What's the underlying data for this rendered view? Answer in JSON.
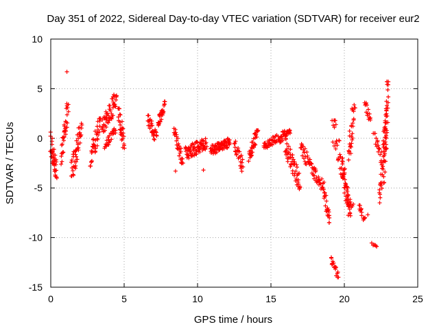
{
  "chart_data": {
    "type": "scatter",
    "title": "Day 351 of 2022, Sidereal Day-to-day VTEC variation (SDTVAR) for receiver eur2",
    "xlabel": "GPS time / hours",
    "ylabel": "SDTVAR / TECUs",
    "xlim": [
      0,
      25
    ],
    "ylim": [
      -15,
      10
    ],
    "x_ticks": [
      0,
      5,
      10,
      15,
      20,
      25
    ],
    "y_ticks": [
      -15,
      -10,
      -5,
      0,
      5,
      10
    ],
    "x_tick_labels": [
      "0",
      "5",
      "10",
      "15",
      "20",
      "25"
    ],
    "y_tick_labels": [
      "-15",
      "-10",
      "-5",
      "0",
      "5",
      "10"
    ],
    "grid": true,
    "marker": "+",
    "color": "#ff0000",
    "segments": [
      {
        "x0": 0.0,
        "x1": 0.4,
        "y_min": -4.0,
        "y_max": 1.5,
        "y0": -0.5,
        "y1": -3.5,
        "n": 40
      },
      {
        "x0": 0.7,
        "x1": 1.2,
        "y_min": -2.6,
        "y_max": 3.8,
        "y0": -2.4,
        "y1": 3.5,
        "n": 35
      },
      {
        "x0": 1.4,
        "x1": 2.1,
        "y_min": -3.8,
        "y_max": 1.5,
        "y0": -3.5,
        "y1": 1.0,
        "n": 45
      },
      {
        "x0": 2.7,
        "x1": 3.4,
        "y_min": -2.8,
        "y_max": 2.0,
        "y0": -2.5,
        "y1": 1.8,
        "n": 40
      },
      {
        "x0": 3.5,
        "x1": 4.5,
        "y_min": 0.0,
        "y_max": 4.3,
        "y0": 1.0,
        "y1": 4.0,
        "n": 55
      },
      {
        "x0": 3.7,
        "x1": 4.4,
        "y_min": -1.0,
        "y_max": 1.0,
        "y0": -0.8,
        "y1": 0.8,
        "n": 25
      },
      {
        "x0": 4.6,
        "x1": 5.0,
        "y_min": -1.0,
        "y_max": 3.0,
        "y0": 2.8,
        "y1": -0.8,
        "n": 30
      },
      {
        "x0": 6.6,
        "x1": 7.2,
        "y_min": -0.5,
        "y_max": 2.3,
        "y0": 2.0,
        "y1": 0.0,
        "n": 30
      },
      {
        "x0": 7.3,
        "x1": 7.8,
        "y_min": 1.3,
        "y_max": 3.7,
        "y0": 1.5,
        "y1": 3.5,
        "n": 30
      },
      {
        "x0": 8.4,
        "x1": 9.0,
        "y_min": -2.6,
        "y_max": 1.0,
        "y0": 1.0,
        "y1": -2.5,
        "n": 30
      },
      {
        "x0": 9.2,
        "x1": 10.6,
        "y_min": -2.3,
        "y_max": 0.5,
        "y0": -1.5,
        "y1": -0.5,
        "n": 80
      },
      {
        "x0": 10.9,
        "x1": 12.2,
        "y_min": -2.0,
        "y_max": 0.3,
        "y0": -1.2,
        "y1": -0.4,
        "n": 85
      },
      {
        "x0": 12.5,
        "x1": 13.1,
        "y_min": -3.8,
        "y_max": -0.3,
        "y0": -0.5,
        "y1": -3.0,
        "n": 25
      },
      {
        "x0": 13.5,
        "x1": 14.1,
        "y_min": -2.3,
        "y_max": 0.8,
        "y0": -2.0,
        "y1": 0.7,
        "n": 35
      },
      {
        "x0": 14.5,
        "x1": 15.4,
        "y_min": -1.2,
        "y_max": 0.5,
        "y0": -0.8,
        "y1": 0.0,
        "n": 35
      },
      {
        "x0": 15.5,
        "x1": 16.3,
        "y_min": -1.0,
        "y_max": 1.3,
        "y0": 0.0,
        "y1": 0.5,
        "n": 40
      },
      {
        "x0": 16.0,
        "x1": 17.0,
        "y_min": -5.2,
        "y_max": -0.5,
        "y0": -1.0,
        "y1": -4.5,
        "n": 50
      },
      {
        "x0": 17.0,
        "x1": 17.8,
        "y_min": -3.5,
        "y_max": 0.0,
        "y0": -1.0,
        "y1": -3.0,
        "n": 30
      },
      {
        "x0": 17.8,
        "x1": 18.6,
        "y_min": -5.5,
        "y_max": -2.5,
        "y0": -3.0,
        "y1": -5.0,
        "n": 30
      },
      {
        "x0": 18.6,
        "x1": 19.0,
        "y_min": -8.5,
        "y_max": -5.0,
        "y0": -5.5,
        "y1": -8.5,
        "n": 25
      },
      {
        "x0": 19.1,
        "x1": 19.6,
        "y_min": -14.0,
        "y_max": -12.0,
        "y0": -12.0,
        "y1": -14.0,
        "n": 18
      },
      {
        "x0": 19.2,
        "x1": 19.8,
        "y_min": -6.0,
        "y_max": 1.8,
        "y0": 1.5,
        "y1": -3.0,
        "n": 25
      },
      {
        "x0": 19.8,
        "x1": 20.4,
        "y_min": -7.8,
        "y_max": -2.0,
        "y0": -2.5,
        "y1": -7.5,
        "n": 50
      },
      {
        "x0": 20.3,
        "x1": 20.7,
        "y_min": -2.5,
        "y_max": 4.0,
        "y0": -2.0,
        "y1": 3.5,
        "n": 30
      },
      {
        "x0": 20.2,
        "x1": 20.6,
        "y_min": -7.0,
        "y_max": -6.0,
        "y0": -6.5,
        "y1": -6.8,
        "n": 10
      },
      {
        "x0": 21.0,
        "x1": 21.4,
        "y_min": -8.5,
        "y_max": -6.5,
        "y0": -6.5,
        "y1": -8.3,
        "n": 15
      },
      {
        "x0": 21.4,
        "x1": 21.8,
        "y_min": 1.5,
        "y_max": 3.8,
        "y0": 3.5,
        "y1": 1.8,
        "n": 15
      },
      {
        "x0": 21.9,
        "x1": 22.2,
        "y_min": -11.0,
        "y_max": -10.5,
        "y0": -10.6,
        "y1": -10.9,
        "n": 6
      },
      {
        "x0": 22.0,
        "x1": 22.5,
        "y_min": -2.0,
        "y_max": 0.5,
        "y0": 0.3,
        "y1": -1.8,
        "n": 15
      },
      {
        "x0": 22.4,
        "x1": 22.9,
        "y_min": -6.5,
        "y_max": 3.0,
        "y0": -6.0,
        "y1": 2.5,
        "n": 45
      },
      {
        "x0": 22.7,
        "x1": 23.0,
        "y_min": -4.5,
        "y_max": 5.7,
        "y0": -4.0,
        "y1": 5.5,
        "n": 35
      }
    ],
    "outliers": [
      {
        "x": 1.1,
        "y": 6.7
      },
      {
        "x": 4.3,
        "y": 4.4
      },
      {
        "x": 22.2,
        "y": -10.9
      },
      {
        "x": 22.9,
        "y": 5.7
      },
      {
        "x": 8.5,
        "y": -3.3
      },
      {
        "x": 10.4,
        "y": -3.2
      },
      {
        "x": 21.6,
        "y": -7.7
      }
    ]
  }
}
